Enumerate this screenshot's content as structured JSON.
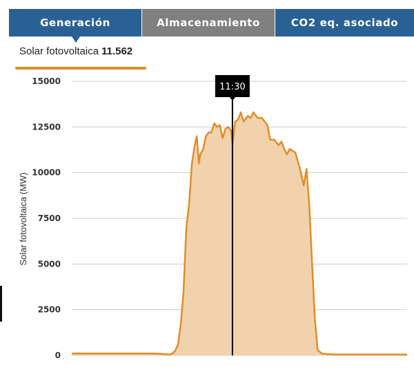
{
  "tabs": [
    {
      "label": "Generación"
    },
    {
      "label": "Almacenamiento"
    },
    {
      "label": "CO2 eq. asociado"
    }
  ],
  "legend": {
    "series_label": "Solar fotovoltaica",
    "value": "11.562"
  },
  "tooltip": {
    "time": "11:30",
    "x_hours": 11.5
  },
  "colors": {
    "tab_active": "#2a6195",
    "tab_inactive": "#808080",
    "line": "#e18d27",
    "fill": "#f2d2ac",
    "grid": "#cccccc"
  },
  "chart_data": {
    "type": "area",
    "title": "",
    "ylabel": "Solar fotovoltaica (MW)",
    "ylim": [
      0,
      15000
    ],
    "yticks": [
      "0",
      "2500",
      "5000",
      "7500",
      "10000",
      "12500",
      "15000"
    ],
    "xlim": [
      0,
      24
    ],
    "grid": true,
    "series": [
      {
        "name": "Solar fotovoltaica",
        "x": [
          0.0,
          3.0,
          6.0,
          6.5,
          7.0,
          7.2,
          7.4,
          7.6,
          7.8,
          8.0,
          8.2,
          8.4,
          8.6,
          8.8,
          8.95,
          9.1,
          9.2,
          9.4,
          9.6,
          9.8,
          10.0,
          10.2,
          10.4,
          10.6,
          10.8,
          11.0,
          11.2,
          11.4,
          11.5,
          11.7,
          11.9,
          12.1,
          12.3,
          12.6,
          12.8,
          13.0,
          13.3,
          13.6,
          13.8,
          14.0,
          14.2,
          14.5,
          14.8,
          15.0,
          15.2,
          15.4,
          15.6,
          16.0,
          16.3,
          16.6,
          16.8,
          17.0,
          17.2,
          17.4,
          17.6,
          17.9,
          18.2,
          18.6,
          19.0,
          20.0,
          22.0,
          24.0
        ],
        "values": [
          100,
          100,
          100,
          80,
          50,
          100,
          250,
          600,
          1700,
          3500,
          7000,
          8300,
          10500,
          11500,
          12000,
          10500,
          11000,
          11300,
          12000,
          12200,
          12200,
          12700,
          12500,
          12600,
          11900,
          12400,
          12500,
          12300,
          11560,
          12800,
          12900,
          13300,
          12800,
          13100,
          13000,
          13300,
          13000,
          13000,
          12800,
          12600,
          11800,
          11800,
          11500,
          11700,
          11300,
          11000,
          11300,
          11100,
          10300,
          9300,
          10200,
          8200,
          5000,
          2000,
          300,
          100,
          80,
          60,
          50,
          50,
          50,
          50
        ]
      }
    ]
  }
}
